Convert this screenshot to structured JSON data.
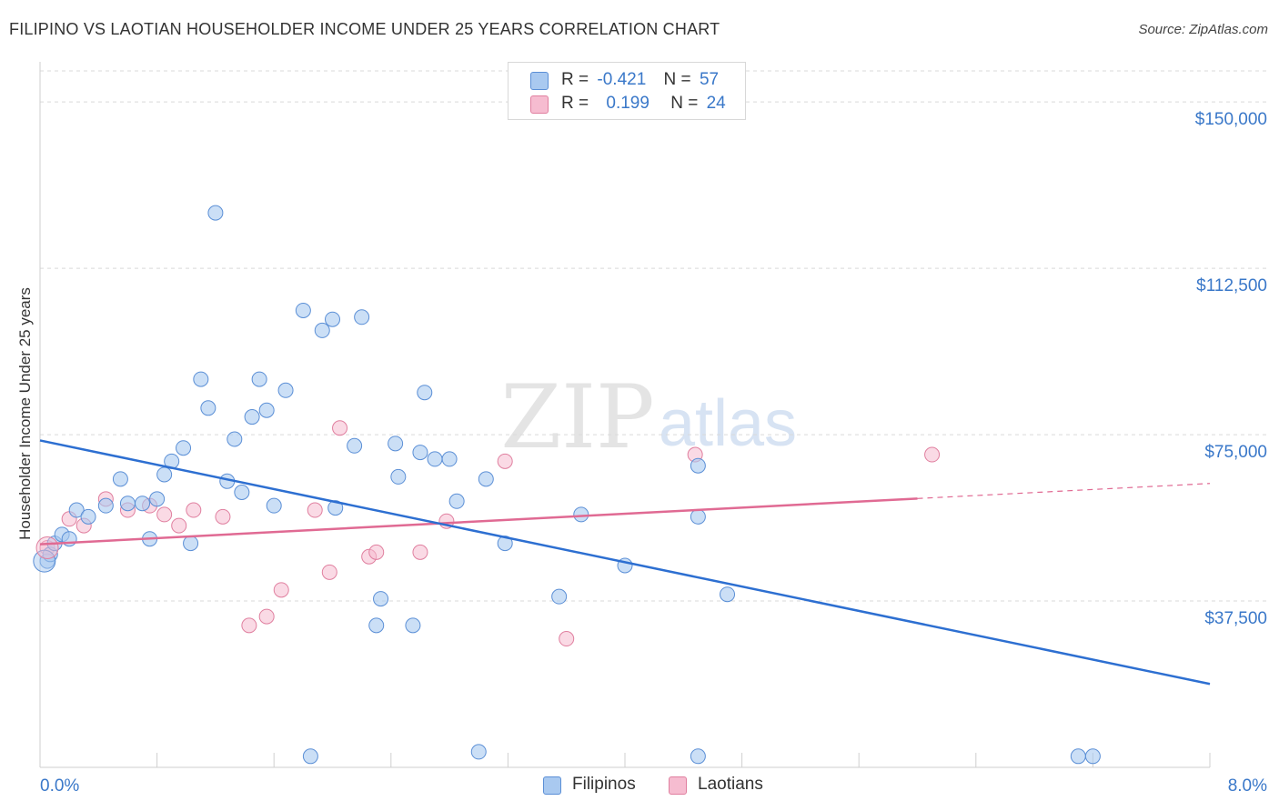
{
  "header": {
    "title": "FILIPINO VS LAOTIAN HOUSEHOLDER INCOME UNDER 25 YEARS CORRELATION CHART",
    "source": "Source: ZipAtlas.com"
  },
  "legend": {
    "rows": [
      {
        "r_label": "R =",
        "r_value": "-0.421",
        "n_label": "N =",
        "n_value": "57"
      },
      {
        "r_label": "R =",
        "r_value": "0.199",
        "n_label": "N =",
        "n_value": "24"
      }
    ],
    "bottom": [
      "Filipinos",
      "Laotians"
    ]
  },
  "colors": {
    "filipino_fill": "#a9c9f0",
    "filipino_stroke": "#5b8fd6",
    "filipino_line": "#2d6fd1",
    "laotian_fill": "#f6bcd0",
    "laotian_stroke": "#e07f9f",
    "laotian_line": "#e06a93",
    "tick_label": "#3a78c9",
    "grid": "#d9d9d9"
  },
  "watermark": {
    "part1": "ZIP",
    "part2": "atlas"
  },
  "chart_data": {
    "type": "scatter",
    "title": "FILIPINO VS LAOTIAN HOUSEHOLDER INCOME UNDER 25 YEARS CORRELATION CHART",
    "xlabel": "",
    "ylabel": "Householder Income Under 25 years",
    "xlim": [
      0,
      8.0
    ],
    "ylim": [
      0,
      157000
    ],
    "x_tick_labels": [
      "0.0%",
      "8.0%"
    ],
    "y_ticks": [
      37500,
      75000,
      112500,
      150000
    ],
    "y_tick_labels": [
      "$37,500",
      "$75,000",
      "$112,500",
      "$150,000"
    ],
    "grid": true,
    "legend_position": "top-center",
    "series": [
      {
        "name": "Filipinos",
        "R": -0.421,
        "N": 57,
        "trend": {
          "x": [
            0.0,
            8.0
          ],
          "y": [
            73700,
            18800
          ]
        },
        "points": [
          [
            0.05,
            46500
          ],
          [
            0.07,
            48000
          ],
          [
            0.1,
            50500
          ],
          [
            0.15,
            52500
          ],
          [
            0.2,
            51500
          ],
          [
            0.25,
            58000
          ],
          [
            0.33,
            56500
          ],
          [
            0.45,
            59000
          ],
          [
            0.55,
            65000
          ],
          [
            0.6,
            59500
          ],
          [
            0.7,
            59500
          ],
          [
            0.75,
            51500
          ],
          [
            0.8,
            60500
          ],
          [
            0.85,
            66000
          ],
          [
            0.9,
            69000
          ],
          [
            0.98,
            72000
          ],
          [
            1.03,
            50500
          ],
          [
            1.1,
            87500
          ],
          [
            1.15,
            81000
          ],
          [
            1.2,
            125000
          ],
          [
            1.28,
            64500
          ],
          [
            1.33,
            74000
          ],
          [
            1.38,
            62000
          ],
          [
            1.45,
            79000
          ],
          [
            1.5,
            87500
          ],
          [
            1.55,
            80500
          ],
          [
            1.6,
            59000
          ],
          [
            1.68,
            85000
          ],
          [
            1.8,
            103000
          ],
          [
            1.93,
            98500
          ],
          [
            2.0,
            101000
          ],
          [
            2.02,
            58500
          ],
          [
            2.15,
            72500
          ],
          [
            2.2,
            101500
          ],
          [
            2.33,
            38000
          ],
          [
            2.43,
            73000
          ],
          [
            2.45,
            65500
          ],
          [
            2.6,
            71000
          ],
          [
            2.63,
            84500
          ],
          [
            2.7,
            69500
          ],
          [
            2.8,
            69500
          ],
          [
            2.85,
            60000
          ],
          [
            3.05,
            65000
          ],
          [
            3.18,
            50500
          ],
          [
            3.55,
            38500
          ],
          [
            3.7,
            57000
          ],
          [
            4.0,
            45500
          ],
          [
            4.5,
            68000
          ],
          [
            4.5,
            56500
          ],
          [
            4.7,
            39000
          ],
          [
            1.85,
            2500
          ],
          [
            2.3,
            32000
          ],
          [
            2.55,
            32000
          ],
          [
            3.0,
            3500
          ],
          [
            4.5,
            2500
          ],
          [
            7.1,
            2500
          ],
          [
            7.2,
            2500
          ]
        ]
      },
      {
        "name": "Laotians",
        "R": 0.199,
        "N": 24,
        "trend": {
          "x": [
            0.0,
            6.0
          ],
          "y": [
            50300,
            60600
          ]
        },
        "trend_dashed": {
          "x": [
            6.0,
            8.0
          ],
          "y": [
            60600,
            64000
          ]
        },
        "points": [
          [
            0.05,
            49500
          ],
          [
            0.2,
            56000
          ],
          [
            0.3,
            54500
          ],
          [
            0.45,
            60500
          ],
          [
            0.6,
            58000
          ],
          [
            0.75,
            59000
          ],
          [
            0.85,
            57000
          ],
          [
            0.95,
            54500
          ],
          [
            1.05,
            58000
          ],
          [
            1.25,
            56500
          ],
          [
            1.43,
            32000
          ],
          [
            1.55,
            34000
          ],
          [
            1.65,
            40000
          ],
          [
            1.88,
            58000
          ],
          [
            1.98,
            44000
          ],
          [
            2.05,
            76500
          ],
          [
            2.25,
            47500
          ],
          [
            2.3,
            48500
          ],
          [
            2.6,
            48500
          ],
          [
            2.78,
            55500
          ],
          [
            3.18,
            69000
          ],
          [
            3.6,
            29000
          ],
          [
            4.48,
            70500
          ],
          [
            6.1,
            70500
          ]
        ]
      }
    ]
  }
}
